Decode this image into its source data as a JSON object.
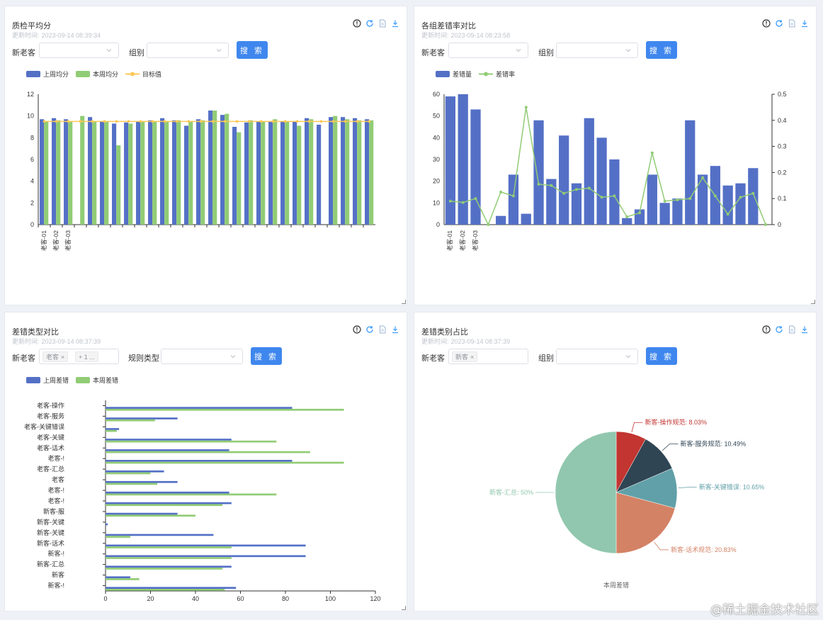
{
  "colors": {
    "blue": "#5470c6",
    "green": "#91cc75",
    "yellow": "#fac858",
    "button": "#3f87ee",
    "pie": [
      "#c23531",
      "#2f4554",
      "#61a0a8",
      "#d48265",
      "#91c7ae"
    ]
  },
  "panel1": {
    "title": "质检平均分",
    "time_label": "更新时间:",
    "time": "2023-09-14 08:39:34",
    "filters": {
      "label1": "新老客",
      "label2": "组别",
      "search": "搜 索"
    },
    "legend": [
      "上周均分",
      "本周均分",
      "目标值"
    ],
    "chart_data": {
      "type": "bar",
      "title": "质检平均分",
      "categories": [
        "老客-01",
        "老客-02",
        "老客-03",
        "",
        "",
        "",
        "",
        "",
        "",
        "",
        "",
        "",
        "",
        "",
        "",
        "",
        "",
        "",
        "",
        "",
        "",
        "",
        "",
        "",
        "",
        "",
        "",
        ""
      ],
      "series": [
        {
          "name": "上周均分",
          "values": [
            9.7,
            9.8,
            9.7,
            0,
            9.9,
            9.5,
            9.3,
            9.4,
            9.5,
            9.6,
            9.8,
            9.6,
            9.1,
            9.7,
            10.5,
            10.1,
            9.0,
            9.4,
            9.5,
            9.5,
            9.5,
            9.5,
            9.8,
            9.2,
            9.9,
            9.9,
            9.8,
            9.7
          ]
        },
        {
          "name": "本周均分",
          "values": [
            9.5,
            9.6,
            9.5,
            10.0,
            9.5,
            9.5,
            7.3,
            9.3,
            9.5,
            9.5,
            9.5,
            9.6,
            9.5,
            9.6,
            10.5,
            10.2,
            8.5,
            9.6,
            9.5,
            9.7,
            9.5,
            9.1,
            9.7,
            0,
            10.0,
            9.7,
            9.6,
            9.6
          ]
        },
        {
          "name": "目标值",
          "values": [
            9.5,
            9.5,
            9.5,
            9.5,
            9.5,
            9.5,
            9.5,
            9.5,
            9.5,
            9.5,
            9.5,
            9.5,
            9.5,
            9.5,
            9.5,
            9.5,
            9.5,
            9.5,
            9.5,
            9.5,
            9.5,
            9.5,
            9.5,
            9.5,
            9.5,
            9.5,
            9.5,
            9.5
          ]
        }
      ],
      "ylim": [
        0,
        12
      ],
      "yticks": [
        "0",
        "2",
        "4",
        "6",
        "8",
        "10",
        "12"
      ]
    }
  },
  "panel2": {
    "title": "各组差错率对比",
    "time_label": "更新时间:",
    "time": "2023-09-14 08:23:58",
    "filters": {
      "label1": "新老客",
      "label2": "组别",
      "search": "搜 索"
    },
    "legend": [
      "差错量",
      "差错率"
    ],
    "chart_data": {
      "type": "bar",
      "title": "各组差错率对比",
      "categories": [
        "老客-01",
        "老客-02",
        "老客-03",
        "",
        "",
        "",
        "",
        "",
        "",
        "",
        "",
        "",
        "",
        "",
        "",
        "",
        "",
        "",
        "",
        "",
        "",
        "",
        "",
        "",
        "",
        ""
      ],
      "series": [
        {
          "name": "差错量",
          "values": [
            59,
            60,
            53,
            0,
            4,
            23,
            5,
            48,
            21,
            41,
            19,
            49,
            40,
            30,
            3,
            7,
            23,
            10,
            12,
            48,
            23,
            27,
            18,
            19,
            26,
            0
          ]
        },
        {
          "name": "差错率",
          "values": [
            0.09,
            0.085,
            0.1,
            0,
            0.125,
            0.11,
            0.45,
            0.155,
            0.15,
            0.12,
            0.135,
            0.14,
            0.105,
            0.11,
            0.03,
            0.045,
            0.275,
            0.09,
            0.095,
            0.1,
            0.18,
            0.11,
            0.04,
            0.105,
            0.12,
            0
          ]
        }
      ],
      "ylim": [
        0,
        60
      ],
      "y2lim": [
        0,
        0.5
      ],
      "yticks": [
        "0",
        "10",
        "20",
        "30",
        "40",
        "50",
        "60"
      ],
      "y2ticks": [
        "0",
        "0.1",
        "0.2",
        "0.3",
        "0.4",
        "0.5"
      ]
    }
  },
  "panel3": {
    "title": "差错类型对比",
    "time_label": "更新时间:",
    "time": "2023-09-14 08:37:39",
    "filters": {
      "label1": "新老客",
      "tag1": "老客",
      "tag2": "+ 1 ...",
      "label2": "规则类型",
      "search": "搜 索"
    },
    "legend": [
      "上周差错",
      "本周差错"
    ],
    "chart_data": {
      "type": "bar",
      "orientation": "horizontal",
      "title": "差错类型对比",
      "categories": [
        "新客-!",
        "新客",
        "新客-汇总",
        "新客-!",
        "新客-话术",
        "新客-关键",
        "新客-关键",
        "新客-服",
        "老客-!",
        "老客-!",
        "老客",
        "老客-汇总",
        "老客-!",
        "老客-话术",
        "老客-关键",
        "老客-关键错误",
        "老客-服务",
        "老客-操作"
      ],
      "series": [
        {
          "name": "上周差错",
          "values": [
            58,
            11,
            56,
            89,
            89,
            48,
            1,
            32,
            56,
            55,
            32,
            26,
            83,
            55,
            56,
            6,
            32,
            83
          ]
        },
        {
          "name": "本周差错",
          "values": [
            53,
            15,
            52,
            56,
            56,
            11,
            0,
            40,
            52,
            76,
            23,
            20,
            106,
            91,
            76,
            5,
            22,
            106
          ]
        }
      ],
      "xlim": [
        0,
        120
      ],
      "xticks": [
        "0",
        "20",
        "40",
        "60",
        "80",
        "100",
        "120"
      ]
    }
  },
  "panel4": {
    "title": "差错类别占比",
    "time_label": "更新时间:",
    "time": "2023-09-14 08:37:39",
    "filters": {
      "label1": "新老客",
      "tag1": "新客",
      "label2": "组别",
      "search": "搜 索"
    },
    "chart_data": {
      "type": "pie",
      "title": "本周差错",
      "slices": [
        {
          "name": "新客-操作规范",
          "value": 8.03,
          "label": "新客-操作规范: 8.03%"
        },
        {
          "name": "新客-服务规范",
          "value": 10.49,
          "label": "新客-服务规范: 10.49%"
        },
        {
          "name": "新客-关键错误",
          "value": 10.65,
          "label": "新客-关键错误: 10.65%"
        },
        {
          "name": "新客-话术规范",
          "value": 20.83,
          "label": "新客-话术规范: 20.83%"
        },
        {
          "name": "新客-汇总",
          "value": 50,
          "label": "新客-汇总: 50%"
        }
      ]
    }
  },
  "watermark": "@稀土掘金技术社区"
}
